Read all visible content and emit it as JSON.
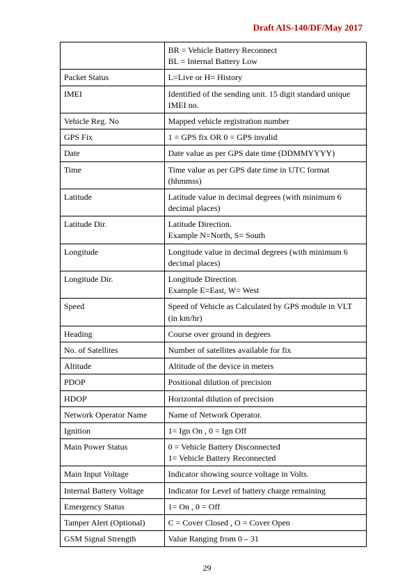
{
  "header": {
    "title": "Draft AIS-140/DF/May 2017"
  },
  "footer": {
    "page_number": "29"
  },
  "table": {
    "columns": {
      "field_width_pct": 34,
      "desc_width_pct": 66
    },
    "rows": [
      {
        "field": "",
        "desc": "BR = Vehicle Battery Reconnect\nBL = Internal Battery Low"
      },
      {
        "field": "Packet Status",
        "desc": "L=Live or H= History"
      },
      {
        "field": "IMEI",
        "desc": "Identified of the sending unit. 15 digit standard unique IMEI no."
      },
      {
        "field": "Vehicle Reg. No",
        "desc": "Mapped vehicle registration number"
      },
      {
        "field": "GPS Fix",
        "desc": "1 = GPS fix OR 0 = GPS invalid"
      },
      {
        "field": "Date",
        "desc": "Date value as per GPS date time (DDMMYYYY)"
      },
      {
        "field": "Time",
        "desc": "Time value as per GPS date time in UTC format (hhmmss)"
      },
      {
        "field": "Latitude",
        "desc": "Latitude value in decimal degrees (with minimum 6 decimal places)"
      },
      {
        "field": "Latitude Dir.",
        "desc": "Latitude Direction.\nExample N=North, S= South"
      },
      {
        "field": "Longitude",
        "desc": "Longitude value in decimal degrees (with minimum 6 decimal places)"
      },
      {
        "field": "Longitude Dir.",
        "desc": "Longitude Direction.\nExample E=East, W= West"
      },
      {
        "field": "Speed",
        "desc": "Speed of Vehicle as Calculated by GPS module in VLT (in km/hr)"
      },
      {
        "field": "Heading",
        "desc": "Course over ground in degrees"
      },
      {
        "field": "No. of Satellites",
        "desc": "Number of satellites available for fix"
      },
      {
        "field": "Altitude",
        "desc": "Altitude of the device in meters"
      },
      {
        "field": "PDOP",
        "desc": "Positional dilution of precision"
      },
      {
        "field": "HDOP",
        "desc": "Horizontal dilution of precision"
      },
      {
        "field": "Network Operator Name",
        "desc": "Name of Network Operator."
      },
      {
        "field": "Ignition",
        "desc": "1= Ign On , 0 = Ign Off"
      },
      {
        "field": "Main Power Status",
        "desc": "0 = Vehicle Battery Disconnected\n1= Vehicle Battery Reconnected"
      },
      {
        "field": "Main Input Voltage",
        "desc": "Indicator showing source voltage in Volts."
      },
      {
        "field": "Internal Battery Voltage",
        "desc": "Indicator for Level of battery charge remaining"
      },
      {
        "field": "Emergency Status",
        "desc": "1= On , 0 = Off"
      },
      {
        "field": "Tamper Alert (Optional)",
        "desc": "C = Cover Closed , O = Cover Open"
      },
      {
        "field": "GSM Signal Strength",
        "desc": "Value Ranging from 0 – 31"
      }
    ]
  }
}
